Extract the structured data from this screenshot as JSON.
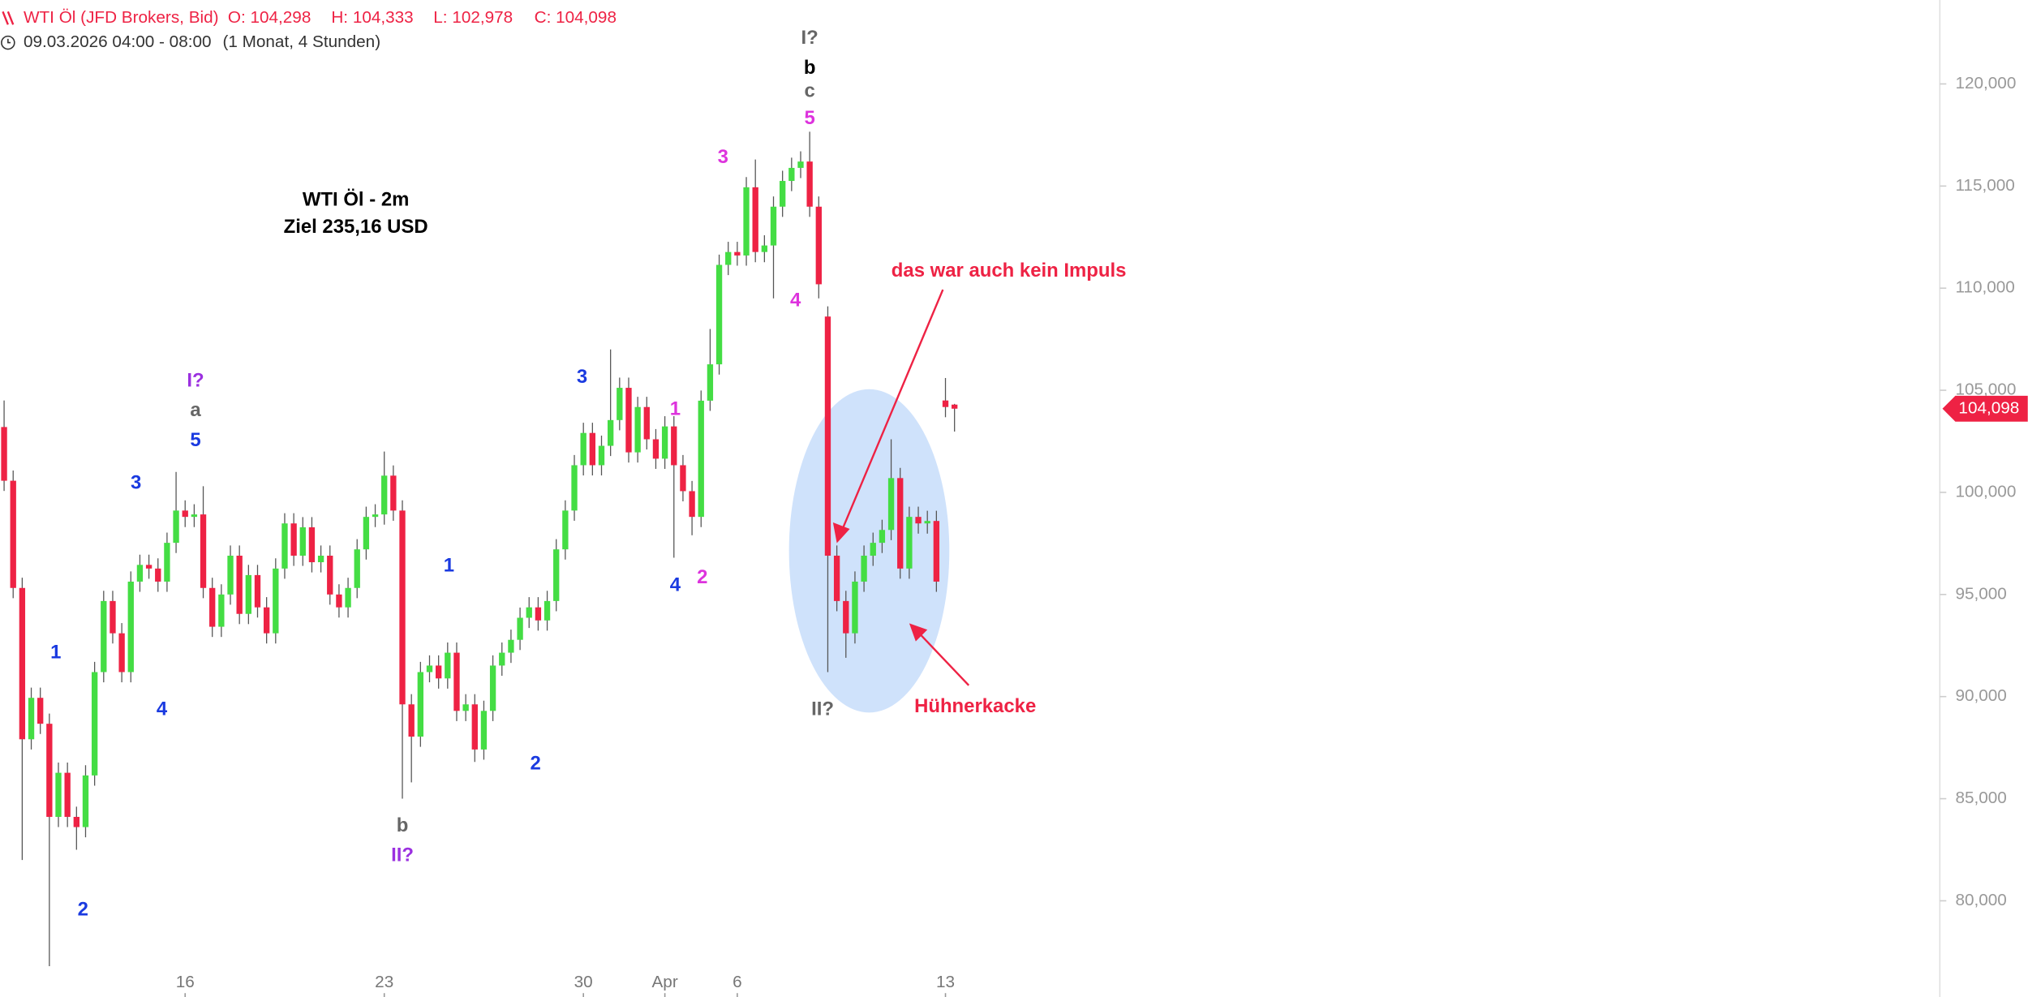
{
  "header": {
    "symbol": "WTI Öl (JFD Brokers, Bid)",
    "ohlc": [
      "O: 104,298",
      "H: 104,333",
      "L: 102,978",
      "C: 104,098"
    ],
    "date": "09.03.2026 04:00 - 08:00",
    "interval": "(1 Monat, 4 Stunden)"
  },
  "chart_data": {
    "type": "candlestick",
    "categories": [
      null,
      null,
      null,
      null,
      null,
      null,
      null,
      null,
      null,
      null,
      null,
      null,
      null,
      null,
      null,
      null,
      null,
      null,
      null,
      null,
      "16",
      null,
      null,
      null,
      null,
      null,
      null,
      null,
      null,
      null,
      null,
      null,
      null,
      null,
      null,
      null,
      null,
      null,
      null,
      null,
      null,
      null,
      "23",
      null,
      null,
      null,
      null,
      null,
      null,
      null,
      null,
      null,
      null,
      null,
      null,
      null,
      null,
      null,
      null,
      null,
      null,
      null,
      null,
      null,
      "30",
      null,
      null,
      null,
      null,
      null,
      null,
      null,
      null,
      "Apr",
      null,
      null,
      null,
      null,
      null,
      null,
      null,
      "6",
      null,
      null,
      null,
      null,
      null,
      null,
      null,
      null,
      null,
      null,
      null,
      null,
      null,
      null,
      null,
      null,
      null,
      null,
      null,
      null,
      null,
      null,
      "13",
      null
    ],
    "open": [
      103.2,
      100.57,
      95.32,
      87.91,
      89.94,
      88.67,
      84.11,
      86.27,
      84.11,
      83.61,
      86.14,
      91.2,
      94.68,
      93.1,
      91.2,
      95.63,
      96.45,
      96.27,
      95.63,
      97.53,
      99.11,
      98.8,
      98.92,
      95.32,
      93.42,
      95.0,
      96.9,
      94.05,
      95.95,
      94.37,
      93.1,
      96.27,
      98.48,
      96.9,
      98.29,
      96.58,
      96.9,
      95.0,
      94.37,
      95.32,
      97.21,
      98.8,
      98.92,
      100.82,
      99.11,
      89.62,
      88.04,
      91.2,
      91.52,
      90.89,
      92.15,
      89.3,
      89.62,
      87.41,
      89.3,
      91.52,
      92.15,
      92.78,
      93.86,
      94.37,
      93.73,
      94.68,
      97.21,
      99.11,
      101.33,
      102.91,
      101.33,
      102.28,
      103.54,
      105.12,
      101.96,
      104.18,
      102.6,
      101.65,
      103.23,
      101.33,
      100.06,
      98.8,
      104.49,
      106.27,
      111.14,
      111.77,
      111.6,
      114.94,
      111.77,
      112.09,
      113.99,
      115.25,
      115.89,
      116.2,
      113.99,
      108.61,
      96.9,
      94.68,
      93.1,
      95.63,
      96.9,
      97.53,
      98.16,
      100.7,
      96.27,
      98.8,
      98.48,
      98.6,
      104.5,
      104.298
    ],
    "high": [
      104.5,
      101.07,
      95.82,
      90.44,
      90.44,
      89.17,
      86.77,
      86.77,
      84.61,
      86.64,
      91.7,
      95.18,
      95.18,
      93.6,
      96.13,
      96.95,
      96.95,
      96.77,
      98.03,
      101.0,
      99.61,
      99.42,
      100.3,
      95.82,
      95.5,
      97.4,
      97.4,
      96.45,
      96.45,
      94.87,
      96.77,
      98.98,
      98.98,
      98.79,
      98.79,
      97.4,
      97.4,
      95.5,
      95.82,
      97.71,
      99.3,
      99.42,
      102.0,
      101.32,
      99.61,
      90.12,
      91.7,
      92.02,
      92.02,
      92.65,
      92.65,
      90.12,
      90.12,
      89.8,
      92.02,
      92.65,
      93.28,
      94.36,
      94.87,
      94.87,
      95.18,
      97.71,
      99.61,
      101.83,
      103.41,
      103.41,
      102.78,
      107.0,
      105.62,
      105.62,
      104.68,
      104.68,
      103.1,
      103.73,
      103.73,
      101.83,
      100.56,
      104.99,
      108.0,
      111.64,
      112.27,
      112.27,
      115.44,
      116.3,
      112.59,
      114.49,
      115.75,
      116.39,
      116.7,
      117.66,
      114.49,
      109.11,
      97.4,
      95.18,
      96.13,
      97.4,
      98.03,
      98.66,
      102.6,
      101.2,
      99.3,
      99.3,
      99.1,
      99.1,
      105.6,
      104.333
    ],
    "low": [
      100.07,
      94.82,
      82.0,
      87.41,
      88.17,
      76.8,
      83.61,
      83.61,
      82.5,
      83.11,
      85.64,
      90.7,
      92.6,
      90.7,
      90.7,
      95.13,
      95.77,
      95.13,
      95.13,
      97.03,
      98.3,
      98.3,
      94.82,
      92.92,
      92.92,
      94.5,
      93.55,
      93.55,
      93.87,
      92.6,
      92.6,
      95.77,
      96.4,
      96.4,
      96.08,
      96.08,
      94.5,
      93.87,
      93.87,
      94.82,
      96.71,
      98.3,
      98.42,
      98.61,
      85.0,
      85.8,
      87.54,
      90.7,
      90.39,
      90.39,
      88.8,
      88.8,
      86.8,
      86.91,
      88.8,
      91.02,
      91.65,
      92.28,
      93.36,
      93.23,
      93.23,
      94.18,
      96.71,
      98.61,
      100.83,
      100.83,
      100.83,
      101.78,
      103.04,
      101.46,
      101.46,
      102.1,
      101.15,
      101.15,
      96.8,
      99.56,
      97.9,
      98.3,
      103.99,
      105.77,
      110.64,
      111.1,
      111.1,
      111.27,
      111.27,
      109.5,
      113.49,
      114.75,
      115.39,
      113.49,
      109.5,
      91.2,
      94.18,
      91.9,
      92.6,
      95.13,
      96.4,
      97.03,
      97.66,
      95.77,
      95.77,
      97.98,
      97.98,
      95.13,
      103.68,
      102.978
    ],
    "close": [
      100.57,
      95.32,
      87.91,
      89.94,
      88.67,
      84.11,
      86.27,
      84.11,
      83.61,
      86.14,
      91.2,
      94.68,
      93.1,
      91.2,
      95.63,
      96.45,
      96.27,
      95.63,
      97.53,
      99.11,
      98.8,
      98.92,
      95.32,
      93.42,
      95.0,
      96.9,
      94.05,
      95.95,
      94.37,
      93.1,
      96.27,
      98.48,
      96.9,
      98.29,
      96.58,
      96.9,
      95.0,
      94.37,
      95.32,
      97.21,
      98.8,
      98.92,
      100.82,
      99.11,
      89.62,
      88.04,
      91.2,
      91.52,
      90.89,
      92.15,
      89.3,
      89.62,
      87.41,
      89.3,
      91.52,
      92.15,
      92.78,
      93.86,
      94.37,
      93.73,
      94.68,
      97.21,
      99.11,
      101.33,
      102.91,
      101.33,
      102.28,
      103.54,
      105.12,
      101.96,
      104.18,
      102.6,
      101.65,
      103.23,
      101.33,
      100.06,
      98.8,
      104.49,
      106.27,
      111.14,
      111.77,
      111.6,
      114.94,
      111.77,
      112.09,
      113.99,
      115.25,
      115.89,
      116.2,
      113.99,
      110.19,
      96.9,
      94.68,
      93.1,
      95.63,
      96.9,
      97.53,
      98.16,
      100.7,
      96.27,
      98.8,
      98.48,
      98.6,
      95.63,
      104.18,
      104.098
    ],
    "up_color": "#44dd44",
    "down_color": "#ee2244",
    "wick_color": "#555555",
    "ylim": [
      75.29,
      124.11
    ],
    "yticks": [
      {
        "value": 80,
        "label": "80,000"
      },
      {
        "value": 85,
        "label": "85,000"
      },
      {
        "value": 90,
        "label": "90,000"
      },
      {
        "value": 95,
        "label": "95,000"
      },
      {
        "value": 100,
        "label": "100,000"
      },
      {
        "value": 105,
        "label": "105,000"
      },
      {
        "value": 110,
        "label": "110,000"
      },
      {
        "value": 115,
        "label": "115,000"
      },
      {
        "value": 120,
        "label": "120,000"
      }
    ],
    "last_price": {
      "value": 104.098,
      "label": "104,098"
    },
    "annotations": [
      {
        "text": "WTI Öl - 2m",
        "color": "#000000"
      },
      {
        "text": "Ziel 235,16 USD",
        "color": "#000000"
      },
      {
        "text": "I?",
        "color": "#666666"
      },
      {
        "text": "b",
        "color": "#000000"
      },
      {
        "text": "c",
        "color": "#666666"
      },
      {
        "text": "5",
        "color": "#dd33dd"
      },
      {
        "text": "3",
        "color": "#dd33dd"
      },
      {
        "text": "4",
        "color": "#dd33dd"
      },
      {
        "text": "1",
        "color": "#dd33dd"
      },
      {
        "text": "2",
        "color": "#dd33dd"
      },
      {
        "text": "3",
        "color": "#1a3ae0"
      },
      {
        "text": "4",
        "color": "#1a3ae0"
      },
      {
        "text": "1",
        "color": "#1a3ae0"
      },
      {
        "text": "2",
        "color": "#1a3ae0"
      },
      {
        "text": "I?",
        "color": "#9b30e0"
      },
      {
        "text": "a",
        "color": "#666666"
      },
      {
        "text": "5",
        "color": "#1a3ae0"
      },
      {
        "text": "3",
        "color": "#1a3ae0"
      },
      {
        "text": "1",
        "color": "#1a3ae0"
      },
      {
        "text": "4",
        "color": "#1a3ae0"
      },
      {
        "text": "2",
        "color": "#1a3ae0"
      },
      {
        "text": "b",
        "color": "#666666"
      },
      {
        "text": "II?",
        "color": "#9b30e0"
      },
      {
        "text": "II?",
        "color": "#666666"
      },
      {
        "text": "das war auch kein Impuls",
        "color": "#ee2244"
      },
      {
        "text": "Hühnerkacke",
        "color": "#ee2244"
      }
    ]
  }
}
